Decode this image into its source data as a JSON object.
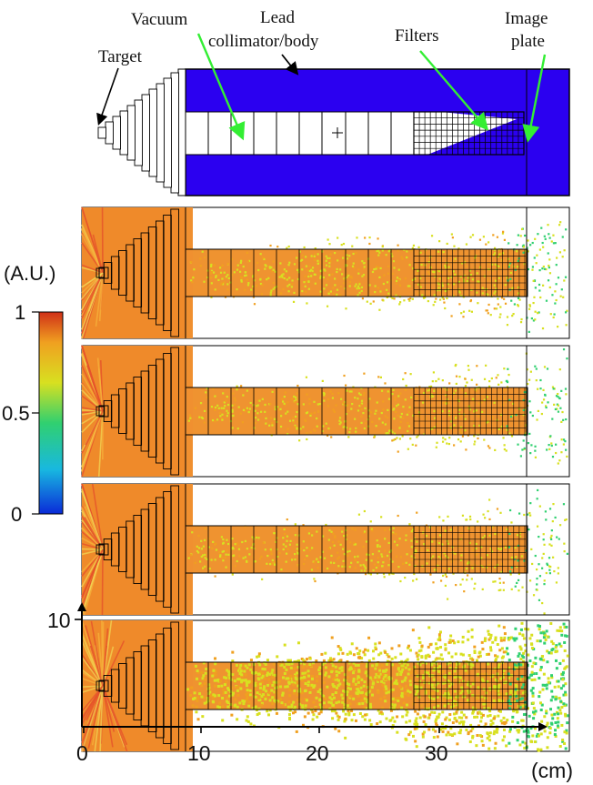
{
  "schematic": {
    "labels": {
      "target": "Target",
      "vacuum": "Vacuum",
      "lead": "Lead",
      "collimator": "collimator/body",
      "filters": "Filters",
      "image": "Image",
      "plate": "plate"
    },
    "colors": {
      "lead": "#2b00f0",
      "arrow": "#33ee33",
      "outline": "#000000"
    }
  },
  "colorbar": {
    "unit": "(A.U.)",
    "ticks": [
      "1",
      "0.5",
      "0"
    ],
    "tick_values": [
      1,
      0.5,
      0
    ],
    "colors": [
      "#0a2ad8",
      "#18b8e0",
      "#30d070",
      "#d8e020",
      "#f0a020",
      "#d03018"
    ]
  },
  "panels": {
    "count": 4,
    "noise_level": [
      0.35,
      0.3,
      0.28,
      0.85
    ]
  },
  "axes": {
    "x_ticks": [
      "0",
      "10",
      "20",
      "30"
    ],
    "x_tick_values": [
      0,
      10,
      20,
      30
    ],
    "x_unit": "(cm)",
    "y_ticks": [
      "10"
    ],
    "y_tick_values": [
      10
    ]
  }
}
